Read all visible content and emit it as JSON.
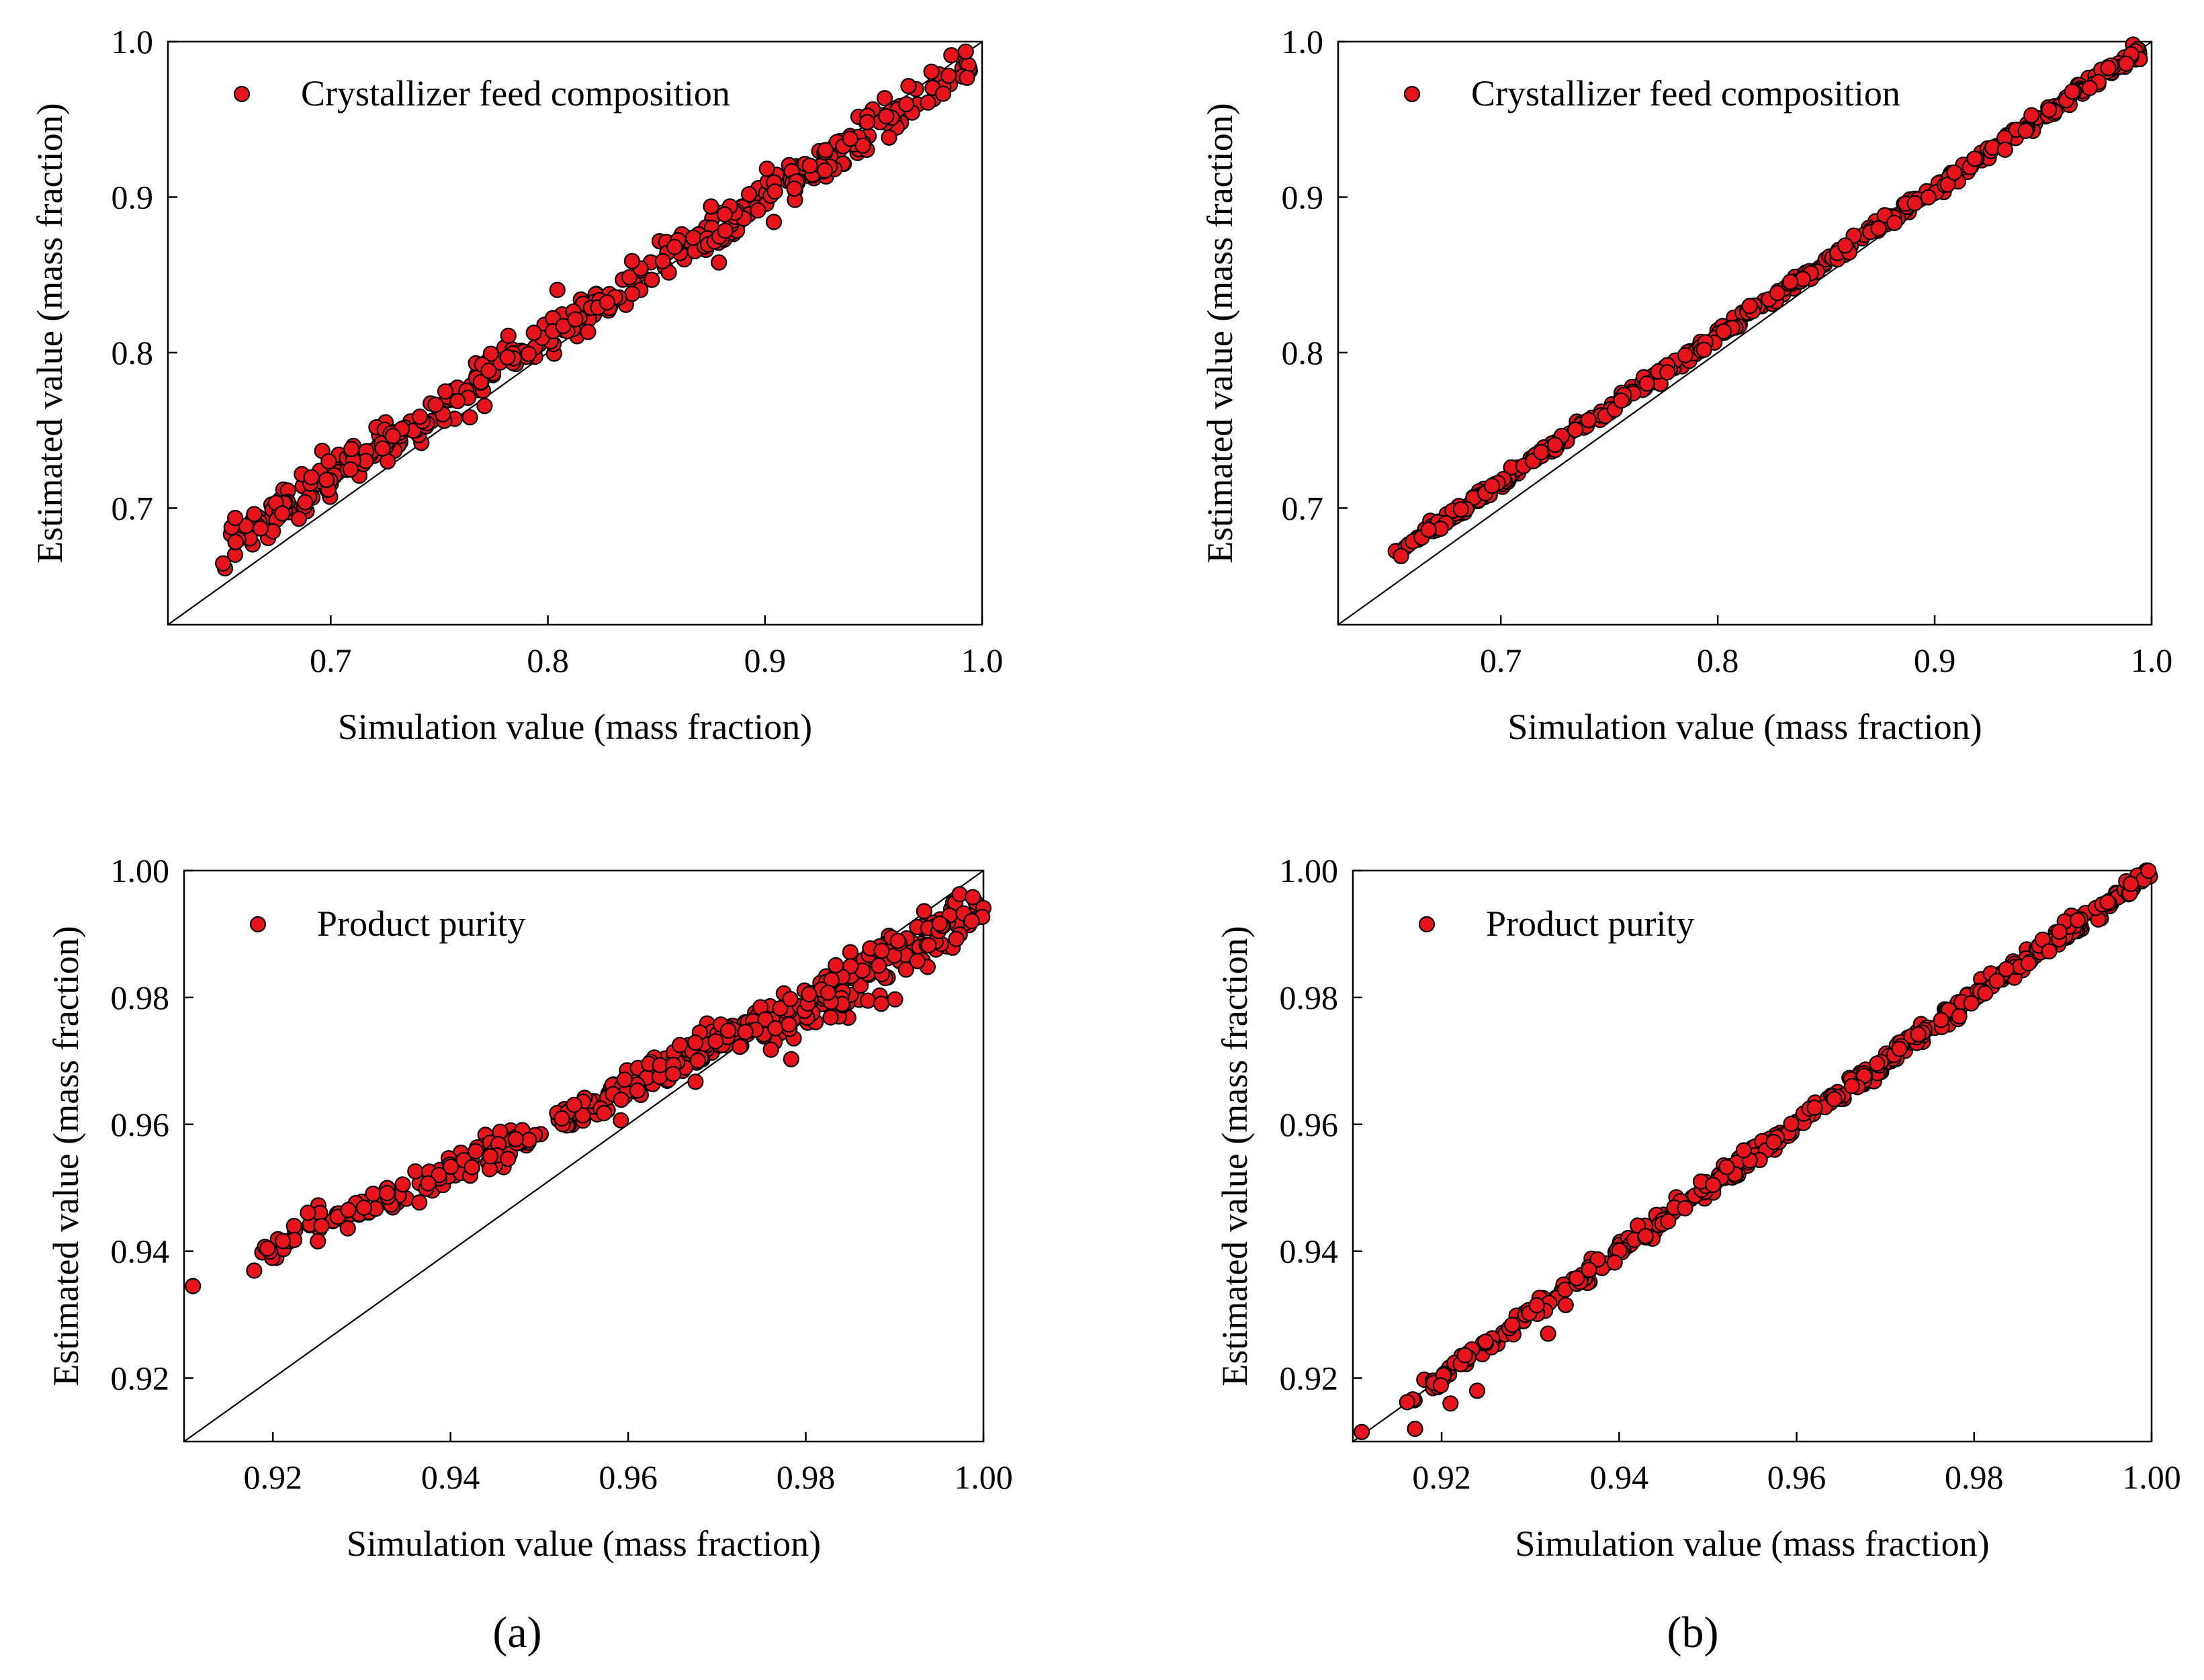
{
  "colors": {
    "marker_fill": "#e8141c",
    "marker_stroke": "#000000",
    "axis": "#000000",
    "identity_line": "#000000"
  },
  "panel_labels": [
    "(a)",
    "(b)"
  ],
  "chart_data": [
    {
      "id": "a-top",
      "type": "scatter",
      "panel": "a",
      "legend": "Crystallizer feed composition",
      "legend_position": "top-left",
      "xlabel": "Simulation value (mass fraction)",
      "ylabel": "Estimated value (mass fraction)",
      "xlim": [
        0.625,
        1.0
      ],
      "ylim": [
        0.625,
        1.0
      ],
      "xticks": [
        "0.7",
        "0.8",
        "0.9",
        "1.0"
      ],
      "yticks": [
        "0.7",
        "0.8",
        "0.9",
        "1.0"
      ],
      "x_range": [
        0.65,
        0.995
      ],
      "y_min_at_x_min": 0.675,
      "y_at_x_max": 0.985,
      "spread": 0.007,
      "bias_curve": "offset_low",
      "n_points": 420,
      "identity_line": true,
      "grid": false
    },
    {
      "id": "b-top",
      "type": "scatter",
      "panel": "b",
      "legend": "Crystallizer feed composition",
      "legend_position": "top-left",
      "xlabel": "Simulation value (mass fraction)",
      "ylabel": "Estimated value (mass fraction)",
      "xlim": [
        0.625,
        1.0
      ],
      "ylim": [
        0.625,
        1.0
      ],
      "xticks": [
        "0.7",
        "0.8",
        "0.9",
        "1.0"
      ],
      "yticks": [
        "0.7",
        "0.8",
        "0.9",
        "1.0"
      ],
      "x_range": [
        0.65,
        0.995
      ],
      "y_min_at_x_min": 0.67,
      "y_at_x_max": 0.995,
      "spread": 0.0022,
      "bias_curve": "tight",
      "n_points": 420,
      "identity_line": true,
      "grid": false
    },
    {
      "id": "a-bottom",
      "type": "scatter",
      "panel": "a",
      "legend": "Product purity",
      "legend_position": "top-left",
      "xlabel": "Simulation value (mass fraction)",
      "ylabel": "Estimated value (mass fraction)",
      "xlim": [
        0.91,
        1.0
      ],
      "ylim": [
        0.91,
        1.0
      ],
      "xticks": [
        "0.92",
        "0.94",
        "0.96",
        "0.98",
        "1.00"
      ],
      "yticks": [
        "0.92",
        "0.94",
        "0.96",
        "0.98",
        "1.00"
      ],
      "x_range": [
        0.917,
        1.0
      ],
      "y_min_at_x_min": 0.939,
      "y_at_x_max": 0.997,
      "spread": 0.0013,
      "bias_curve": "purity_offset",
      "extra_points": [
        [
          0.911,
          0.9345
        ],
        [
          0.987,
          0.9795
        ],
        [
          0.9885,
          0.979
        ]
      ],
      "n_points": 460,
      "identity_line": true,
      "grid": false
    },
    {
      "id": "b-bottom",
      "type": "scatter",
      "panel": "b",
      "legend": "Product purity",
      "legend_position": "top-left",
      "xlabel": "Simulation value (mass fraction)",
      "ylabel": "Estimated value (mass fraction)",
      "xlim": [
        0.91,
        1.0
      ],
      "ylim": [
        0.91,
        1.0
      ],
      "xticks": [
        "0.92",
        "0.94",
        "0.96",
        "0.98",
        "1.00"
      ],
      "yticks": [
        "0.92",
        "0.94",
        "0.96",
        "0.98",
        "1.00"
      ],
      "x_range": [
        0.916,
        1.0
      ],
      "y_min_at_x_min": 0.916,
      "y_at_x_max": 1.0,
      "spread": 0.0008,
      "bias_curve": "purity_tight",
      "extra_points": [
        [
          0.911,
          0.9115
        ],
        [
          0.917,
          0.912
        ],
        [
          0.932,
          0.927
        ],
        [
          0.924,
          0.918
        ],
        [
          0.921,
          0.916
        ]
      ],
      "n_points": 460,
      "identity_line": true,
      "grid": false
    }
  ]
}
